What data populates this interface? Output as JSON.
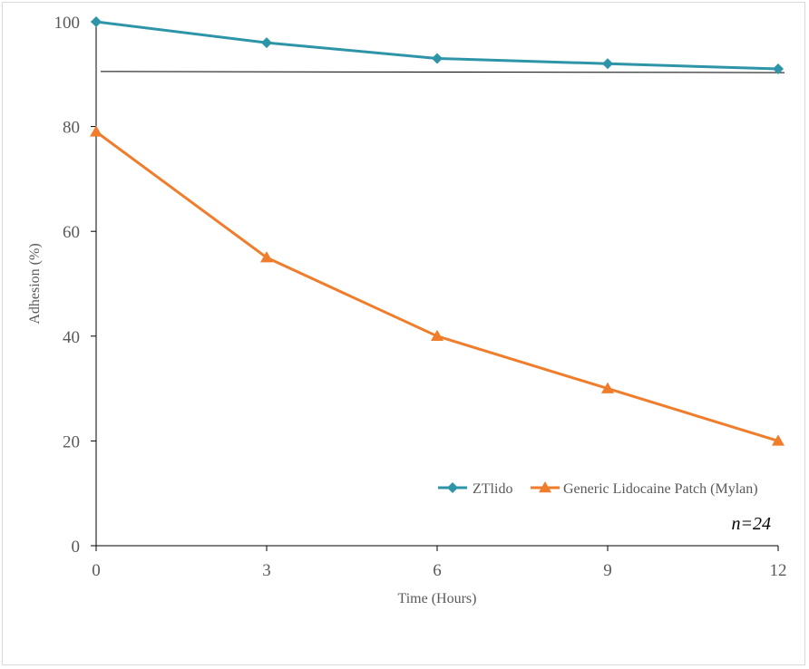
{
  "chart_data": {
    "type": "line",
    "xlabel": "Time (Hours)",
    "ylabel": "Adhesion (%)",
    "x": [
      0,
      3,
      6,
      9,
      12
    ],
    "xticks": [
      "0",
      "3",
      "6",
      "9",
      "12"
    ],
    "yticks": [
      "0",
      "20",
      "40",
      "60",
      "80",
      "100"
    ],
    "xlim": [
      0,
      12
    ],
    "ylim": [
      0,
      100
    ],
    "series": [
      {
        "name": "ZTlido",
        "values": [
          100,
          96,
          93,
          92,
          91
        ],
        "color": "#2e95a8",
        "marker": "diamond"
      },
      {
        "name": "Generic Lidocaine Patch (Mylan)",
        "values": [
          79,
          55,
          40,
          30,
          20
        ],
        "color": "#ef7d2c",
        "marker": "triangle"
      }
    ],
    "reference_line": {
      "y_start": 90.5,
      "y_end": 90.3,
      "color": "#000000"
    },
    "annotation": "n=24",
    "legend_position": "bottom-right"
  }
}
